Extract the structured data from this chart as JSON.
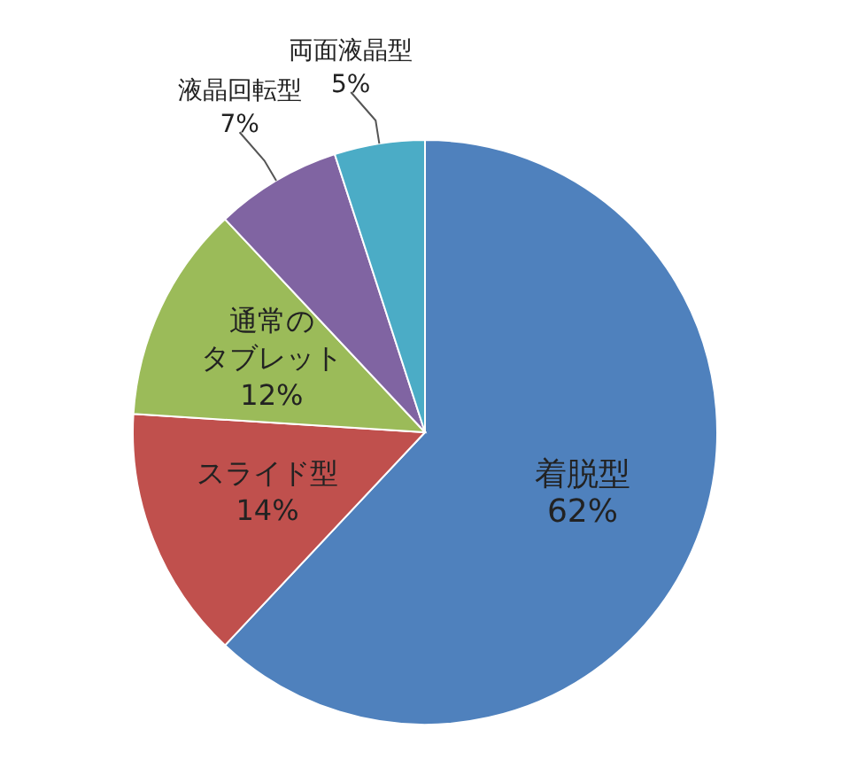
{
  "chart_data": {
    "type": "pie",
    "categories": [
      "着脱型",
      "スライド型",
      "通常のタブレット",
      "液晶回転型",
      "両面液晶型"
    ],
    "values": [
      62,
      14,
      12,
      7,
      5
    ],
    "value_labels": [
      "62%",
      "14%",
      "12%",
      "7%",
      "5%"
    ],
    "colors": [
      "#4f81bd",
      "#c0504d",
      "#9bbb59",
      "#8064a2",
      "#4bacc6"
    ]
  }
}
